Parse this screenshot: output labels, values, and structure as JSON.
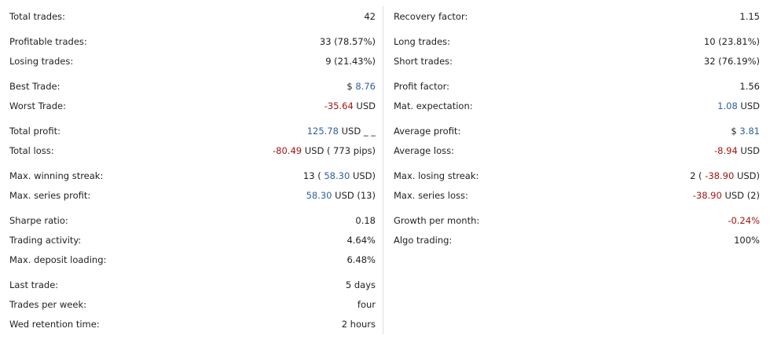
{
  "colors": {
    "positive": "#2f5fa0",
    "negative": "#a31515",
    "text": "#1f1f1f",
    "divider": "#dcdcdc"
  },
  "left": {
    "total_trades": {
      "label": "Total trades:",
      "value": "42"
    },
    "profitable_trades": {
      "label": "Profitable trades:",
      "value": "33 (78.57%)"
    },
    "losing_trades": {
      "label": "Losing trades:",
      "value": "9 (21.43%)"
    },
    "best_trade": {
      "label": "Best Trade:",
      "prefix": "$",
      "value": "8.76"
    },
    "worst_trade": {
      "label": "Worst Trade:",
      "value": "-35.64",
      "suffix": "USD"
    },
    "total_profit": {
      "label": "Total profit:",
      "value": "125.78",
      "suffix": "USD _ _"
    },
    "total_loss": {
      "label": "Total loss:",
      "value": "-80.49",
      "suffix": "USD ( 773 pips)"
    },
    "max_winning_streak": {
      "label": "Max. winning streak:",
      "prefix": "13 (",
      "value": "58.30",
      "suffix": "USD)"
    },
    "max_series_profit": {
      "label": "Max. series profit:",
      "value": "58.30",
      "suffix": "USD (13)"
    },
    "sharpe_ratio": {
      "label": "Sharpe ratio:",
      "value": "0.18"
    },
    "trading_activity": {
      "label": "Trading activity:",
      "value": "4.64%"
    },
    "max_deposit_loading": {
      "label": "Max. deposit loading:",
      "value": "6.48%"
    },
    "last_trade": {
      "label": "Last trade:",
      "value": "5 days"
    },
    "trades_per_week": {
      "label": "Trades per week:",
      "value": "four"
    },
    "retention_time": {
      "label": "Wed retention time:",
      "value": "2 hours"
    }
  },
  "right": {
    "recovery_factor": {
      "label": "Recovery factor:",
      "value": "1.15"
    },
    "long_trades": {
      "label": "Long trades:",
      "value": "10 (23.81%)"
    },
    "short_trades": {
      "label": "Short trades:",
      "value": "32 (76.19%)"
    },
    "profit_factor": {
      "label": "Profit factor:",
      "value": "1.56"
    },
    "mat_expectation": {
      "label": "Mat. expectation:",
      "value": "1.08",
      "suffix": "USD"
    },
    "average_profit": {
      "label": "Average profit:",
      "prefix": "$",
      "value": "3.81"
    },
    "average_loss": {
      "label": "Average loss:",
      "value": "-8.94",
      "suffix": "USD"
    },
    "max_losing_streak": {
      "label": "Max. losing streak:",
      "prefix": "2 (",
      "value": "-38.90",
      "suffix": "USD)"
    },
    "max_series_loss": {
      "label": "Max. series loss:",
      "value": "-38.90",
      "suffix": "USD (2)"
    },
    "growth_per_month": {
      "label": "Growth per month:",
      "value": "-0.24%"
    },
    "algo_trading": {
      "label": "Algo trading:",
      "value": "100%"
    }
  }
}
